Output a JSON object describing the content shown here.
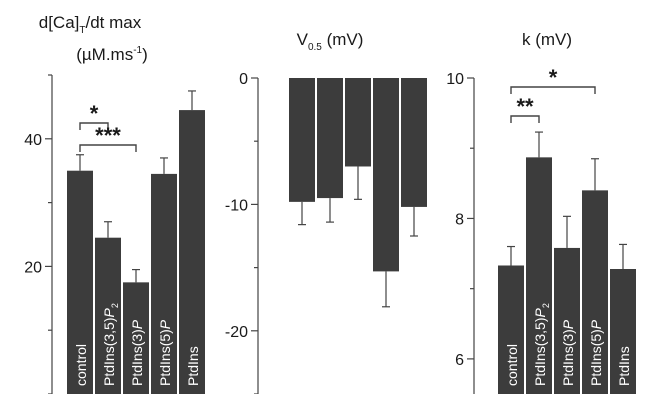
{
  "chart_data": [
    {
      "type": "bar",
      "title": "d[Ca]T/dt max",
      "title_parts": {
        "main": "d[Ca]",
        "sub": "T",
        "tail": "/dt max"
      },
      "ylabel": "(µM.ms-1)",
      "ylabel_parts": {
        "main": "(µM.ms",
        "sup": "-1",
        "tail": ")"
      },
      "ylim": [
        0,
        50
      ],
      "yticks": [
        20,
        40
      ],
      "categories": [
        "control",
        "PtdIns(3,5)P2",
        "PtdIns(3)P",
        "PtdIns(5)P",
        "PtdIns"
      ],
      "values": [
        35,
        24.5,
        17.5,
        34.5,
        44.5
      ],
      "errors": [
        2.5,
        2.5,
        2,
        2.5,
        3
      ],
      "significance": [
        {
          "from": 0,
          "to": 1,
          "label": "*"
        },
        {
          "from": 0,
          "to": 2,
          "label": "***"
        }
      ]
    },
    {
      "type": "bar",
      "title": "V0.5 (mV)",
      "title_parts": {
        "main": "V",
        "sub": "0.5",
        "tail": " (mV)"
      },
      "ylim": [
        -25,
        0
      ],
      "yticks": [
        0,
        -10,
        -20
      ],
      "categories": [
        "control",
        "PtdIns(3,5)P2",
        "PtdIns(3)P",
        "PtdIns(5)P",
        "PtdIns"
      ],
      "values": [
        -9.8,
        -9.5,
        -7,
        -15.3,
        -10.2
      ],
      "errors": [
        1.8,
        1.9,
        2.6,
        2.8,
        2.3
      ],
      "significance": []
    },
    {
      "type": "bar",
      "title": "k (mV)",
      "title_parts": {
        "main": "k (mV)",
        "sub": "",
        "tail": ""
      },
      "ylim": [
        5.5,
        10
      ],
      "yticks": [
        6,
        8,
        10
      ],
      "categories": [
        "control",
        "PtdIns(3,5)P2",
        "PtdIns(3)P",
        "PtdIns(5)P",
        "PtdIns"
      ],
      "values": [
        7.33,
        8.87,
        7.58,
        8.4,
        7.28
      ],
      "errors": [
        0.27,
        0.36,
        0.45,
        0.45,
        0.35
      ],
      "significance": [
        {
          "from": 0,
          "to": 1,
          "label": "**"
        },
        {
          "from": 0,
          "to": 3,
          "label": "*"
        }
      ]
    }
  ],
  "colors": {
    "bar": "#3c3c3c",
    "axis": "#444444",
    "text": "#1a1a1a"
  }
}
